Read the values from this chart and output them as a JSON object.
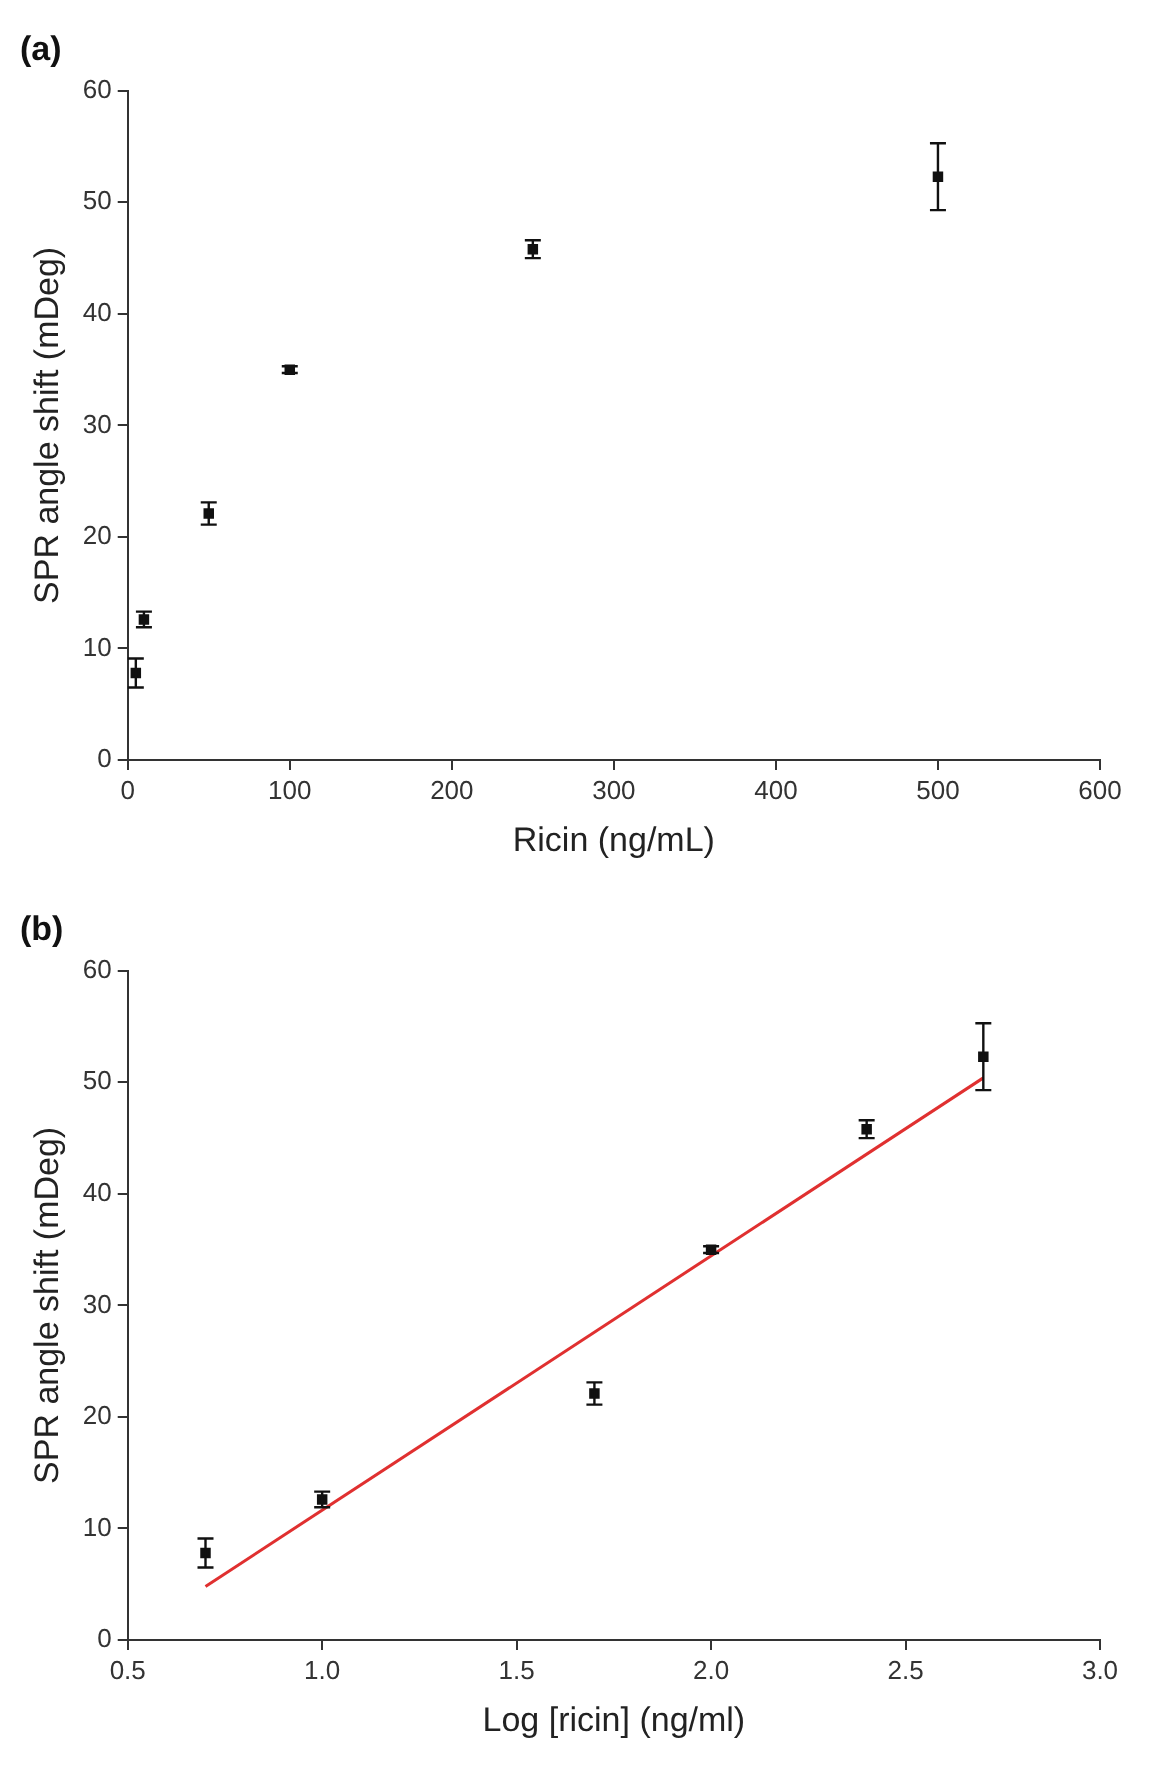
{
  "chart_data": [
    {
      "type": "scatter",
      "title": "(a)",
      "xlabel": "Ricin (ng/mL)",
      "ylabel": "SPR angle shift (mDeg)",
      "grid": false,
      "series": [
        {
          "color": "#111111",
          "marker": "square",
          "x": [
            5,
            10,
            50,
            100,
            250,
            500
          ],
          "values": [
            7.8,
            12.6,
            22.1,
            35.0,
            45.8,
            52.3
          ],
          "errors": [
            1.3,
            0.7,
            1.0,
            0.3,
            0.8,
            3.0
          ]
        }
      ],
      "xlim": [
        0,
        600
      ],
      "xticks": [
        0,
        100,
        200,
        300,
        400,
        500,
        600
      ],
      "ylim": [
        0,
        60
      ],
      "yticks": [
        0,
        10,
        20,
        30,
        40,
        50,
        60
      ]
    },
    {
      "type": "scatter",
      "title": "(b)",
      "xlabel": "Log [ricin] (ng/ml)",
      "ylabel": "SPR angle shift (mDeg)",
      "grid": false,
      "series": [
        {
          "color": "#111111",
          "marker": "square",
          "x": [
            0.7,
            1.0,
            1.7,
            2.0,
            2.4,
            2.7
          ],
          "values": [
            7.8,
            12.6,
            22.1,
            35.0,
            45.8,
            52.3
          ],
          "errors": [
            1.3,
            0.7,
            1.0,
            0.3,
            0.8,
            3.0
          ]
        },
        {
          "type": "line",
          "color": "#e03030",
          "x": [
            0.7,
            2.7
          ],
          "values": [
            4.8,
            50.4
          ]
        }
      ],
      "xlim": [
        0.5,
        3.0
      ],
      "xticks": [
        {
          "value": 0.5,
          "label": "0.5"
        },
        {
          "value": 1.0,
          "label": "1.0"
        },
        {
          "value": 1.5,
          "label": "1.5"
        },
        {
          "value": 2.0,
          "label": "2.0"
        },
        {
          "value": 2.5,
          "label": "2.5"
        },
        {
          "value": 3.0,
          "label": "3.0"
        }
      ],
      "ylim": [
        0,
        60
      ],
      "yticks": [
        0,
        10,
        20,
        30,
        40,
        50,
        60
      ]
    }
  ]
}
